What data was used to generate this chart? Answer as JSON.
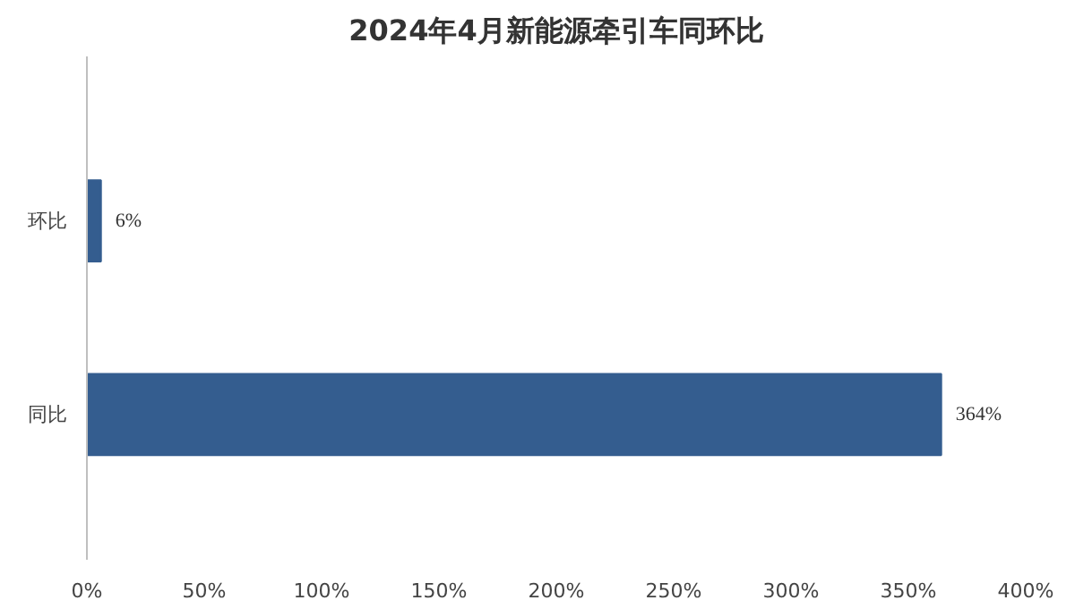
{
  "chart_data": {
    "type": "bar",
    "orientation": "horizontal",
    "title": "2024年4月新能源牵引车同环比",
    "categories": [
      "环比",
      "同比"
    ],
    "values": [
      6,
      364
    ],
    "color": "#345d8f",
    "value_labels": [
      "6%",
      "364%"
    ],
    "xlim": [
      0,
      400
    ],
    "xticks": [
      {
        "value": 0,
        "label": "0%"
      },
      {
        "value": 50,
        "label": "50%"
      },
      {
        "value": 100,
        "label": "100%"
      },
      {
        "value": 150,
        "label": "150%"
      },
      {
        "value": 200,
        "label": "200%"
      },
      {
        "value": 250,
        "label": "250%"
      },
      {
        "value": 300,
        "label": "300%"
      },
      {
        "value": 350,
        "label": "350%"
      },
      {
        "value": 400,
        "label": "400%"
      }
    ],
    "grid": false
  }
}
